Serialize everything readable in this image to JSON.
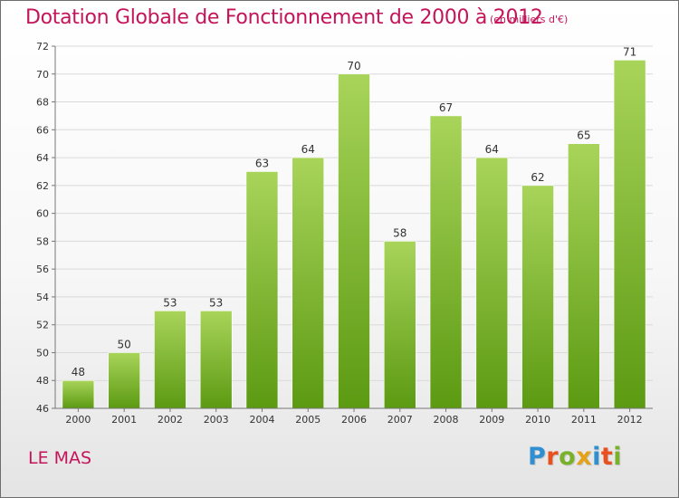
{
  "header": {
    "title": "Dotation Globale de Fonctionnement de 2000 à 2012",
    "unit": "(en milliers d'€)"
  },
  "footer": {
    "place": "LE MAS",
    "logo": {
      "text": "Proxiti",
      "colors": [
        "#2f8fd1",
        "#e8501e",
        "#79b22a",
        "#e3a21a",
        "#2f8fd1",
        "#e8501e",
        "#79b22a"
      ]
    }
  },
  "colors": {
    "bar_top": "#a8d45a",
    "bar_bottom": "#5c9a12",
    "title": "#c4145a",
    "axis_text": "#333333",
    "grid": "#d9d9d9"
  },
  "chart_data": {
    "type": "bar",
    "categories": [
      "2000",
      "2001",
      "2002",
      "2003",
      "2004",
      "2005",
      "2006",
      "2007",
      "2008",
      "2009",
      "2010",
      "2011",
      "2012"
    ],
    "values": [
      48,
      50,
      53,
      53,
      63,
      64,
      70,
      58,
      67,
      64,
      62,
      65,
      71
    ],
    "ylim": [
      46,
      72
    ],
    "yticks": [
      46,
      48,
      50,
      52,
      54,
      56,
      58,
      60,
      62,
      64,
      66,
      68,
      70,
      72
    ],
    "grid": true,
    "data_labels": true
  }
}
